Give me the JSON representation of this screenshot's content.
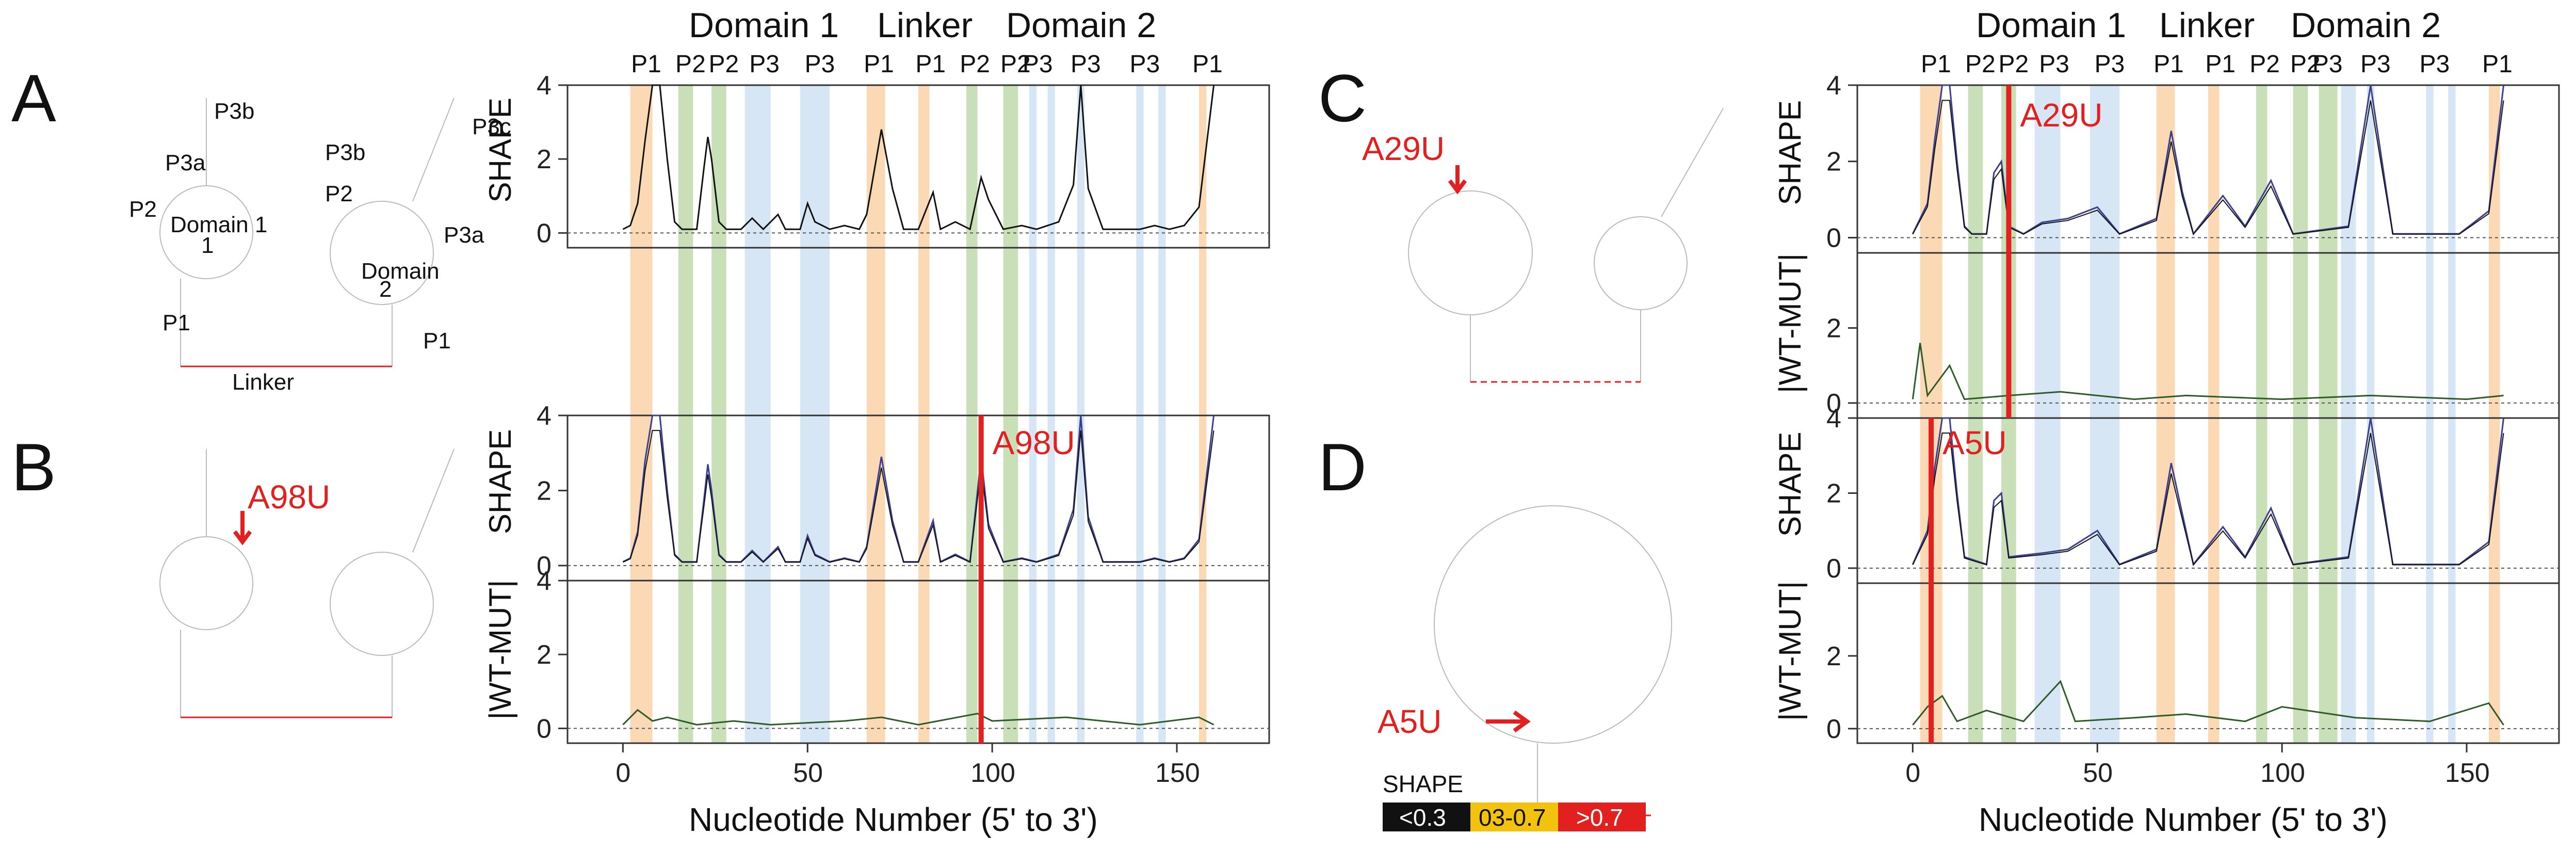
{
  "panels": {
    "A": {
      "letter": "A",
      "domain1_label": "Domain 1",
      "domain1_num": "1",
      "domain2_label": "Domain",
      "domain2_num": "2",
      "linker": "Linker",
      "struct_labels": [
        "P3b",
        "P3a",
        "P2",
        "P1",
        "P3c",
        "P3b",
        "P2",
        "P3a",
        "P1"
      ]
    },
    "B": {
      "letter": "B",
      "mutation": "A98U"
    },
    "C": {
      "letter": "C",
      "mutation": "A29U"
    },
    "D": {
      "letter": "D",
      "mutation": "A5U"
    }
  },
  "legend": {
    "title": "SHAPE",
    "items": [
      {
        "label": "<0.3",
        "color": "#111111",
        "text_color": "#ffffff"
      },
      {
        "label": "03-0.7",
        "color": "#f2c20e",
        "text_color": "#111111"
      },
      {
        "label": ">0.7",
        "color": "#e32020",
        "text_color": "#ffffff"
      }
    ]
  },
  "chart_header": {
    "domain_labels": [
      "Domain 1",
      "Linker",
      "Domain 2"
    ],
    "region_labels": [
      "P1",
      "P2",
      "P2",
      "P3",
      "P3",
      "P1",
      "P1",
      "P2",
      "P2",
      "P3",
      "P3",
      "P3",
      "P1"
    ]
  },
  "colors": {
    "orange": "#fcd9b5",
    "green": "#c9dfb8",
    "blue": "#d6e6f5",
    "mut": "#e32020",
    "wt": "#111111",
    "mutline": "#3a3f8f",
    "diff": "#2d5a27"
  },
  "chart_data": [
    {
      "type": "line",
      "panel": "A",
      "ylabel": "SHAPE",
      "xlabel": "",
      "yticks": [
        "0",
        "2",
        "4"
      ],
      "ylim": [
        -0.4,
        4
      ],
      "xlim": [
        -15,
        175
      ],
      "series": [
        {
          "values": [
            [
              0,
              0.1
            ],
            [
              2,
              0.2
            ],
            [
              4,
              0.8
            ],
            [
              6,
              2.5
            ],
            [
              8,
              4
            ],
            [
              10,
              4
            ],
            [
              12,
              2
            ],
            [
              14,
              0.3
            ],
            [
              16,
              0.1
            ],
            [
              20,
              0.1
            ],
            [
              22,
              1.8
            ],
            [
              23,
              2.6
            ],
            [
              24,
              2.0
            ],
            [
              26,
              0.3
            ],
            [
              28,
              0.1
            ],
            [
              32,
              0.1
            ],
            [
              35,
              0.4
            ],
            [
              38,
              0.1
            ],
            [
              42,
              0.5
            ],
            [
              44,
              0.1
            ],
            [
              48,
              0.1
            ],
            [
              50,
              0.8
            ],
            [
              52,
              0.3
            ],
            [
              56,
              0.1
            ],
            [
              60,
              0.2
            ],
            [
              64,
              0.1
            ],
            [
              66,
              0.5
            ],
            [
              70,
              2.8
            ],
            [
              73,
              1.2
            ],
            [
              76,
              0.1
            ],
            [
              80,
              0.1
            ],
            [
              84,
              1.1
            ],
            [
              86,
              0.1
            ],
            [
              90,
              0.3
            ],
            [
              94,
              0.1
            ],
            [
              97,
              1.5
            ],
            [
              99,
              0.9
            ],
            [
              103,
              0.1
            ],
            [
              108,
              0.2
            ],
            [
              112,
              0.1
            ],
            [
              118,
              0.3
            ],
            [
              122,
              1.3
            ],
            [
              124,
              4
            ],
            [
              126,
              1.2
            ],
            [
              130,
              0.1
            ],
            [
              134,
              0.1
            ],
            [
              140,
              0.1
            ],
            [
              144,
              0.2
            ],
            [
              148,
              0.1
            ],
            [
              152,
              0.2
            ],
            [
              156,
              0.7
            ],
            [
              160,
              4
            ]
          ]
        }
      ]
    },
    {
      "type": "line",
      "panel": "B",
      "ylabel": "SHAPE",
      "xlabel": "",
      "yticks": [
        "0",
        "2",
        "4"
      ],
      "ylim": [
        -0.4,
        4
      ],
      "xlim": [
        -15,
        175
      ],
      "series": [
        {
          "values": [
            [
              0,
              0.1
            ],
            [
              2,
              0.2
            ],
            [
              4,
              0.9
            ],
            [
              6,
              2.8
            ],
            [
              8,
              4
            ],
            [
              10,
              4
            ],
            [
              12,
              2
            ],
            [
              14,
              0.3
            ],
            [
              16,
              0.1
            ],
            [
              20,
              0.1
            ],
            [
              22,
              1.8
            ],
            [
              23,
              2.7
            ],
            [
              24,
              2.0
            ],
            [
              26,
              0.3
            ],
            [
              28,
              0.1
            ],
            [
              32,
              0.1
            ],
            [
              35,
              0.4
            ],
            [
              38,
              0.1
            ],
            [
              42,
              0.5
            ],
            [
              44,
              0.1
            ],
            [
              48,
              0.1
            ],
            [
              50,
              0.8
            ],
            [
              52,
              0.3
            ],
            [
              56,
              0.1
            ],
            [
              60,
              0.2
            ],
            [
              64,
              0.1
            ],
            [
              66,
              0.5
            ],
            [
              70,
              2.9
            ],
            [
              73,
              1.2
            ],
            [
              76,
              0.1
            ],
            [
              80,
              0.1
            ],
            [
              84,
              1.2
            ],
            [
              86,
              0.1
            ],
            [
              90,
              0.3
            ],
            [
              94,
              0.1
            ],
            [
              97,
              2.9
            ],
            [
              99,
              1.1
            ],
            [
              103,
              0.1
            ],
            [
              108,
              0.2
            ],
            [
              112,
              0.1
            ],
            [
              118,
              0.3
            ],
            [
              122,
              1.5
            ],
            [
              124,
              4
            ],
            [
              126,
              1.3
            ],
            [
              130,
              0.1
            ],
            [
              134,
              0.1
            ],
            [
              140,
              0.1
            ],
            [
              144,
              0.2
            ],
            [
              148,
              0.1
            ],
            [
              152,
              0.2
            ],
            [
              156,
              0.7
            ],
            [
              160,
              4
            ]
          ]
        }
      ]
    },
    {
      "type": "line",
      "panel": "B",
      "ylabel": "|WT-MUT|",
      "xlabel": "Nucleotide Number (5' to 3')",
      "yticks": [
        "0",
        "2",
        "4"
      ],
      "ylim": [
        -0.4,
        4
      ],
      "xlim": [
        -15,
        175
      ],
      "xticks": [
        "0",
        "50",
        "100",
        "150"
      ],
      "series": [
        {
          "values": [
            [
              0,
              0.1
            ],
            [
              4,
              0.5
            ],
            [
              8,
              0.2
            ],
            [
              12,
              0.3
            ],
            [
              20,
              0.1
            ],
            [
              30,
              0.2
            ],
            [
              40,
              0.1
            ],
            [
              60,
              0.2
            ],
            [
              70,
              0.3
            ],
            [
              80,
              0.1
            ],
            [
              96,
              0.4
            ],
            [
              100,
              0.2
            ],
            [
              120,
              0.3
            ],
            [
              140,
              0.1
            ],
            [
              156,
              0.3
            ],
            [
              160,
              0.1
            ]
          ]
        }
      ]
    },
    {
      "type": "line",
      "panel": "C",
      "ylabel": "SHAPE",
      "xlabel": "",
      "yticks": [
        "0",
        "2",
        "4"
      ],
      "ylim": [
        -0.4,
        4
      ],
      "xlim": [
        -15,
        175
      ],
      "series": [
        {
          "values": [
            [
              0,
              0.1
            ],
            [
              4,
              0.9
            ],
            [
              6,
              2.6
            ],
            [
              8,
              4
            ],
            [
              10,
              4
            ],
            [
              12,
              2
            ],
            [
              14,
              0.3
            ],
            [
              16,
              0.1
            ],
            [
              20,
              0.1
            ],
            [
              22,
              1.7
            ],
            [
              24,
              2.0
            ],
            [
              26,
              0.3
            ],
            [
              30,
              0.1
            ],
            [
              35,
              0.4
            ],
            [
              42,
              0.5
            ],
            [
              50,
              0.8
            ],
            [
              56,
              0.1
            ],
            [
              66,
              0.5
            ],
            [
              70,
              2.8
            ],
            [
              73,
              1.2
            ],
            [
              76,
              0.1
            ],
            [
              84,
              1.1
            ],
            [
              90,
              0.3
            ],
            [
              97,
              1.5
            ],
            [
              103,
              0.1
            ],
            [
              118,
              0.3
            ],
            [
              124,
              4
            ],
            [
              130,
              0.1
            ],
            [
              148,
              0.1
            ],
            [
              156,
              0.7
            ],
            [
              160,
              4
            ]
          ]
        }
      ]
    },
    {
      "type": "line",
      "panel": "C",
      "ylabel": "|WT-MUT|",
      "xlabel": "",
      "yticks": [
        "0",
        "2"
      ],
      "ylim": [
        -0.4,
        4
      ],
      "xlim": [
        -15,
        175
      ],
      "series": [
        {
          "values": [
            [
              0,
              0.1
            ],
            [
              2,
              1.6
            ],
            [
              4,
              0.2
            ],
            [
              10,
              1.0
            ],
            [
              14,
              0.1
            ],
            [
              26,
              0.2
            ],
            [
              40,
              0.3
            ],
            [
              60,
              0.1
            ],
            [
              74,
              0.2
            ],
            [
              100,
              0.1
            ],
            [
              124,
              0.2
            ],
            [
              150,
              0.1
            ],
            [
              160,
              0.2
            ]
          ]
        }
      ]
    },
    {
      "type": "line",
      "panel": "D",
      "ylabel": "SHAPE",
      "xlabel": "",
      "yticks": [
        "0",
        "2",
        "4"
      ],
      "ylim": [
        -0.4,
        4
      ],
      "xlim": [
        -15,
        175
      ],
      "series": [
        {
          "values": [
            [
              0,
              0.1
            ],
            [
              4,
              1.0
            ],
            [
              6,
              2.7
            ],
            [
              8,
              4
            ],
            [
              10,
              4
            ],
            [
              12,
              2
            ],
            [
              14,
              0.3
            ],
            [
              20,
              0.1
            ],
            [
              22,
              1.8
            ],
            [
              24,
              2.0
            ],
            [
              26,
              0.3
            ],
            [
              35,
              0.4
            ],
            [
              42,
              0.5
            ],
            [
              50,
              1.0
            ],
            [
              56,
              0.1
            ],
            [
              66,
              0.5
            ],
            [
              70,
              2.8
            ],
            [
              76,
              0.1
            ],
            [
              84,
              1.1
            ],
            [
              90,
              0.3
            ],
            [
              97,
              1.6
            ],
            [
              103,
              0.1
            ],
            [
              118,
              0.3
            ],
            [
              124,
              4
            ],
            [
              130,
              0.1
            ],
            [
              148,
              0.1
            ],
            [
              156,
              0.7
            ],
            [
              160,
              4
            ]
          ]
        }
      ]
    },
    {
      "type": "line",
      "panel": "D",
      "ylabel": "|WT-MUT|",
      "xlabel": "Nucleotide Number (5' to 3')",
      "yticks": [
        "0",
        "2"
      ],
      "ylim": [
        -0.4,
        4
      ],
      "xlim": [
        -15,
        175
      ],
      "xticks": [
        "0",
        "50",
        "100",
        "150"
      ],
      "series": [
        {
          "values": [
            [
              0,
              0.1
            ],
            [
              4,
              0.6
            ],
            [
              8,
              0.9
            ],
            [
              12,
              0.2
            ],
            [
              20,
              0.5
            ],
            [
              30,
              0.2
            ],
            [
              40,
              1.3
            ],
            [
              44,
              0.2
            ],
            [
              60,
              0.3
            ],
            [
              74,
              0.4
            ],
            [
              90,
              0.2
            ],
            [
              100,
              0.6
            ],
            [
              120,
              0.3
            ],
            [
              140,
              0.2
            ],
            [
              156,
              0.7
            ],
            [
              160,
              0.1
            ]
          ]
        }
      ]
    }
  ]
}
